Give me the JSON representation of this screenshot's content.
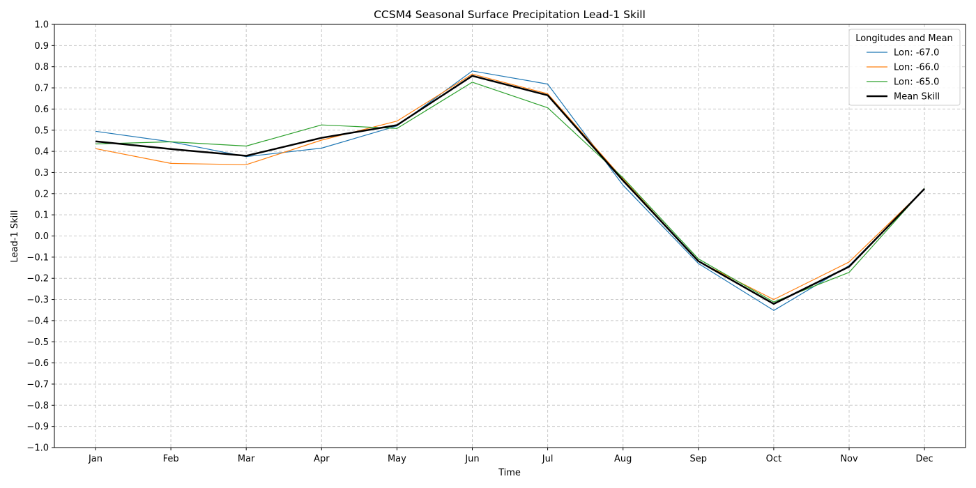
{
  "chart_data": {
    "type": "line",
    "title": "CCSM4 Seasonal Surface Precipitation Lead-1 Skill",
    "xlabel": "Time",
    "ylabel": "Lead-1 Skill",
    "ylim": [
      -1.0,
      1.0
    ],
    "yticks": [
      "-1.0",
      "-0.9",
      "-0.8",
      "-0.7",
      "-0.6",
      "-0.5",
      "-0.4",
      "-0.3",
      "-0.2",
      "-0.1",
      "0.0",
      "0.1",
      "0.2",
      "0.3",
      "0.4",
      "0.5",
      "0.6",
      "0.7",
      "0.8",
      "0.9",
      "1.0"
    ],
    "categories": [
      "Jan",
      "Feb",
      "Mar",
      "Apr",
      "May",
      "Jun",
      "Jul",
      "Aug",
      "Sep",
      "Oct",
      "Nov",
      "Dec"
    ],
    "grid": true,
    "legend": {
      "title": "Longitudes and Mean",
      "placement": "top-right"
    },
    "series": [
      {
        "name": "Lon: -67.0",
        "color": "#1f77b4",
        "width": "thin",
        "values": [
          0.495,
          0.445,
          0.375,
          0.415,
          0.52,
          0.78,
          0.718,
          0.24,
          -0.13,
          -0.352,
          -0.14,
          0.222
        ]
      },
      {
        "name": "Lon: -66.0",
        "color": "#ff7f0e",
        "width": "thin",
        "values": [
          0.413,
          0.343,
          0.337,
          0.453,
          0.543,
          0.765,
          0.672,
          0.27,
          -0.12,
          -0.3,
          -0.123,
          0.222
        ]
      },
      {
        "name": "Lon: -65.0",
        "color": "#2ca02c",
        "width": "thin",
        "values": [
          0.435,
          0.445,
          0.425,
          0.525,
          0.508,
          0.727,
          0.606,
          0.275,
          -0.108,
          -0.312,
          -0.172,
          0.225
        ]
      },
      {
        "name": "Mean Skill",
        "color": "#000000",
        "width": "thick",
        "values": [
          0.447,
          0.411,
          0.379,
          0.464,
          0.524,
          0.757,
          0.665,
          0.262,
          -0.119,
          -0.321,
          -0.145,
          0.223
        ]
      }
    ]
  }
}
